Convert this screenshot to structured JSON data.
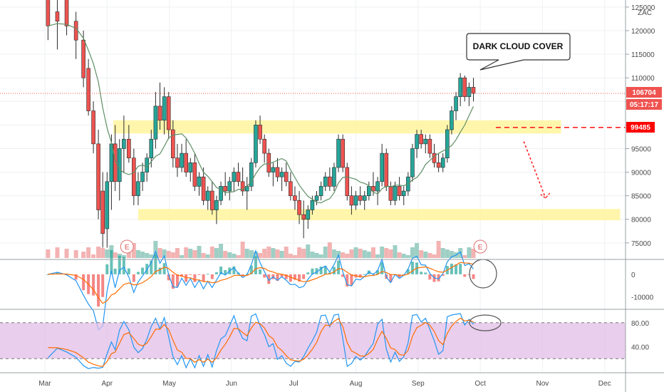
{
  "chart_data": {
    "type": "candlestick",
    "symbol": "ZAC",
    "price_scale": {
      "ylim": [
        71500,
        126500
      ],
      "ticks": [
        "125000",
        "120000",
        "115000",
        "110000",
        "105000",
        "100000",
        "95000",
        "90000",
        "85000",
        "80000",
        "75000"
      ]
    },
    "last_price": "106704",
    "countdown": "05:17:17",
    "resistance_level": "99485",
    "x_axis": {
      "months": [
        "Mar",
        "Apr",
        "May",
        "Jun",
        "Jul",
        "Aug",
        "Sep",
        "Oct",
        "Nov",
        "Dec"
      ]
    },
    "zones": [
      {
        "name": "resistance-zone",
        "from": 98200,
        "to": 101000,
        "start_month": 1.1,
        "end_month": 8.3
      },
      {
        "name": "support-zone",
        "from": 79800,
        "to": 82200,
        "start_month": 1.5,
        "end_month": 9.25
      }
    ],
    "annotation": "DARK CLOUD COVER",
    "earnings_markers": [
      "E",
      "E"
    ],
    "price_series": [
      [
        0.05,
        130000,
        132000,
        118000,
        121000
      ],
      [
        0.2,
        124000,
        127000,
        116000,
        122000
      ],
      [
        0.35,
        128000,
        130000,
        119000,
        121000
      ],
      [
        0.5,
        122000,
        124000,
        114000,
        118000
      ],
      [
        0.62,
        118000,
        120000,
        108000,
        110000
      ],
      [
        0.7,
        112000,
        114000,
        102000,
        103000
      ],
      [
        0.78,
        103000,
        105000,
        94000,
        96000
      ],
      [
        0.86,
        96000,
        99000,
        80000,
        82000
      ],
      [
        0.93,
        86000,
        90000,
        74000,
        77000
      ],
      [
        1.0,
        78000,
        90000,
        74000,
        88000
      ],
      [
        1.07,
        88000,
        98000,
        82000,
        96000
      ],
      [
        1.13,
        96000,
        100000,
        86000,
        88000
      ],
      [
        1.2,
        88000,
        97000,
        84000,
        95000
      ],
      [
        1.27,
        95000,
        102000,
        90000,
        97000
      ],
      [
        1.35,
        97000,
        100000,
        92000,
        93000
      ],
      [
        1.43,
        93000,
        95000,
        83000,
        85000
      ],
      [
        1.5,
        85000,
        90000,
        83000,
        88000
      ],
      [
        1.57,
        88000,
        92000,
        86000,
        90000
      ],
      [
        1.64,
        90000,
        94000,
        88000,
        93000
      ],
      [
        1.71,
        93000,
        99000,
        91000,
        97000
      ],
      [
        1.78,
        97000,
        107000,
        95000,
        104000
      ],
      [
        1.85,
        104000,
        109000,
        99000,
        101000
      ],
      [
        1.92,
        101000,
        108000,
        98000,
        106000
      ],
      [
        1.99,
        106000,
        107000,
        97000,
        99000
      ],
      [
        2.06,
        99000,
        101000,
        91000,
        93000
      ],
      [
        2.13,
        93000,
        96000,
        89000,
        91000
      ],
      [
        2.2,
        91000,
        96000,
        90000,
        94000
      ],
      [
        2.27,
        94000,
        97000,
        89000,
        90000
      ],
      [
        2.34,
        90000,
        93000,
        88000,
        92000
      ],
      [
        2.41,
        92000,
        94000,
        86000,
        87000
      ],
      [
        2.48,
        87000,
        90000,
        85000,
        89000
      ],
      [
        2.55,
        89000,
        91000,
        83000,
        84000
      ],
      [
        2.62,
        84000,
        87000,
        82000,
        86000
      ],
      [
        2.69,
        86000,
        88000,
        81000,
        82000
      ],
      [
        2.76,
        82000,
        85000,
        79000,
        84000
      ],
      [
        2.83,
        84000,
        88000,
        83000,
        87000
      ],
      [
        2.9,
        87000,
        90000,
        85000,
        86000
      ],
      [
        2.97,
        86000,
        89000,
        84000,
        88000
      ],
      [
        3.04,
        88000,
        91000,
        86000,
        90000
      ],
      [
        3.11,
        90000,
        92000,
        87000,
        88000
      ],
      [
        3.18,
        88000,
        91000,
        85000,
        86000
      ],
      [
        3.25,
        86000,
        89000,
        82000,
        87000
      ],
      [
        3.32,
        87000,
        93000,
        86000,
        92000
      ],
      [
        3.39,
        92000,
        101000,
        91000,
        100000
      ],
      [
        3.46,
        100000,
        102000,
        96000,
        97000
      ],
      [
        3.53,
        97000,
        98000,
        92000,
        94000
      ],
      [
        3.6,
        94000,
        95000,
        89000,
        90000
      ],
      [
        3.67,
        90000,
        92000,
        87000,
        91000
      ],
      [
        3.74,
        91000,
        93000,
        88000,
        89000
      ],
      [
        3.81,
        89000,
        91000,
        86000,
        90000
      ],
      [
        3.88,
        90000,
        92000,
        87000,
        88000
      ],
      [
        3.95,
        88000,
        90000,
        84000,
        85000
      ],
      [
        4.02,
        85000,
        87000,
        82000,
        84000
      ],
      [
        4.09,
        84000,
        86000,
        79000,
        81000
      ],
      [
        4.16,
        81000,
        84000,
        76000,
        80000
      ],
      [
        4.23,
        80000,
        83000,
        78000,
        82000
      ],
      [
        4.3,
        82000,
        85000,
        81000,
        84000
      ],
      [
        4.37,
        84000,
        86000,
        83000,
        85000
      ],
      [
        4.44,
        85000,
        88000,
        84000,
        87000
      ],
      [
        4.51,
        87000,
        90000,
        86000,
        89000
      ],
      [
        4.58,
        89000,
        91000,
        86000,
        87000
      ],
      [
        4.65,
        87000,
        92000,
        86000,
        91000
      ],
      [
        4.72,
        91000,
        98000,
        90000,
        97000
      ],
      [
        4.79,
        97000,
        98000,
        90000,
        91000
      ],
      [
        4.86,
        91000,
        92000,
        84000,
        85000
      ],
      [
        4.93,
        85000,
        87000,
        81000,
        83000
      ],
      [
        5.0,
        83000,
        86000,
        82000,
        85000
      ],
      [
        5.07,
        85000,
        87000,
        83000,
        84000
      ],
      [
        5.14,
        84000,
        86000,
        82000,
        85000
      ],
      [
        5.21,
        85000,
        88000,
        84000,
        87000
      ],
      [
        5.28,
        87000,
        90000,
        85000,
        86000
      ],
      [
        5.35,
        86000,
        89000,
        83000,
        88000
      ],
      [
        5.42,
        88000,
        96000,
        87000,
        94000
      ],
      [
        5.49,
        94000,
        95000,
        86000,
        87000
      ],
      [
        5.56,
        87000,
        88000,
        83000,
        84000
      ],
      [
        5.63,
        84000,
        88000,
        83000,
        87000
      ],
      [
        5.7,
        87000,
        89000,
        84000,
        85000
      ],
      [
        5.77,
        85000,
        87000,
        83000,
        86000
      ],
      [
        5.84,
        86000,
        90000,
        85000,
        89000
      ],
      [
        5.91,
        89000,
        96000,
        88000,
        95000
      ],
      [
        5.98,
        95000,
        99000,
        93000,
        98000
      ],
      [
        6.05,
        98000,
        99000,
        95000,
        96000
      ],
      [
        6.12,
        96000,
        98000,
        94000,
        97000
      ],
      [
        6.19,
        97000,
        98000,
        93000,
        94000
      ],
      [
        6.26,
        94000,
        96000,
        91000,
        92000
      ],
      [
        6.33,
        92000,
        94000,
        90000,
        91000
      ],
      [
        6.4,
        91000,
        94000,
        90000,
        93000
      ],
      [
        6.47,
        93000,
        100000,
        92000,
        99000
      ],
      [
        6.54,
        99000,
        104000,
        98000,
        103000
      ],
      [
        6.61,
        103000,
        107000,
        101000,
        106000
      ],
      [
        6.68,
        106000,
        111000,
        104000,
        110000
      ],
      [
        6.75,
        110000,
        110500,
        105000,
        106000
      ],
      [
        6.82,
        106000,
        109000,
        104000,
        108000
      ],
      [
        6.89,
        108000,
        110000,
        105000,
        106700
      ]
    ],
    "macd": {
      "ticks": [
        "0",
        "-10000"
      ],
      "ylim": [
        -15000,
        6000
      ]
    },
    "stochastic": {
      "ticks": [
        "80.00",
        "40.00"
      ],
      "ylim": [
        0,
        100
      ],
      "upper_band": 80,
      "lower_band": 20
    }
  }
}
